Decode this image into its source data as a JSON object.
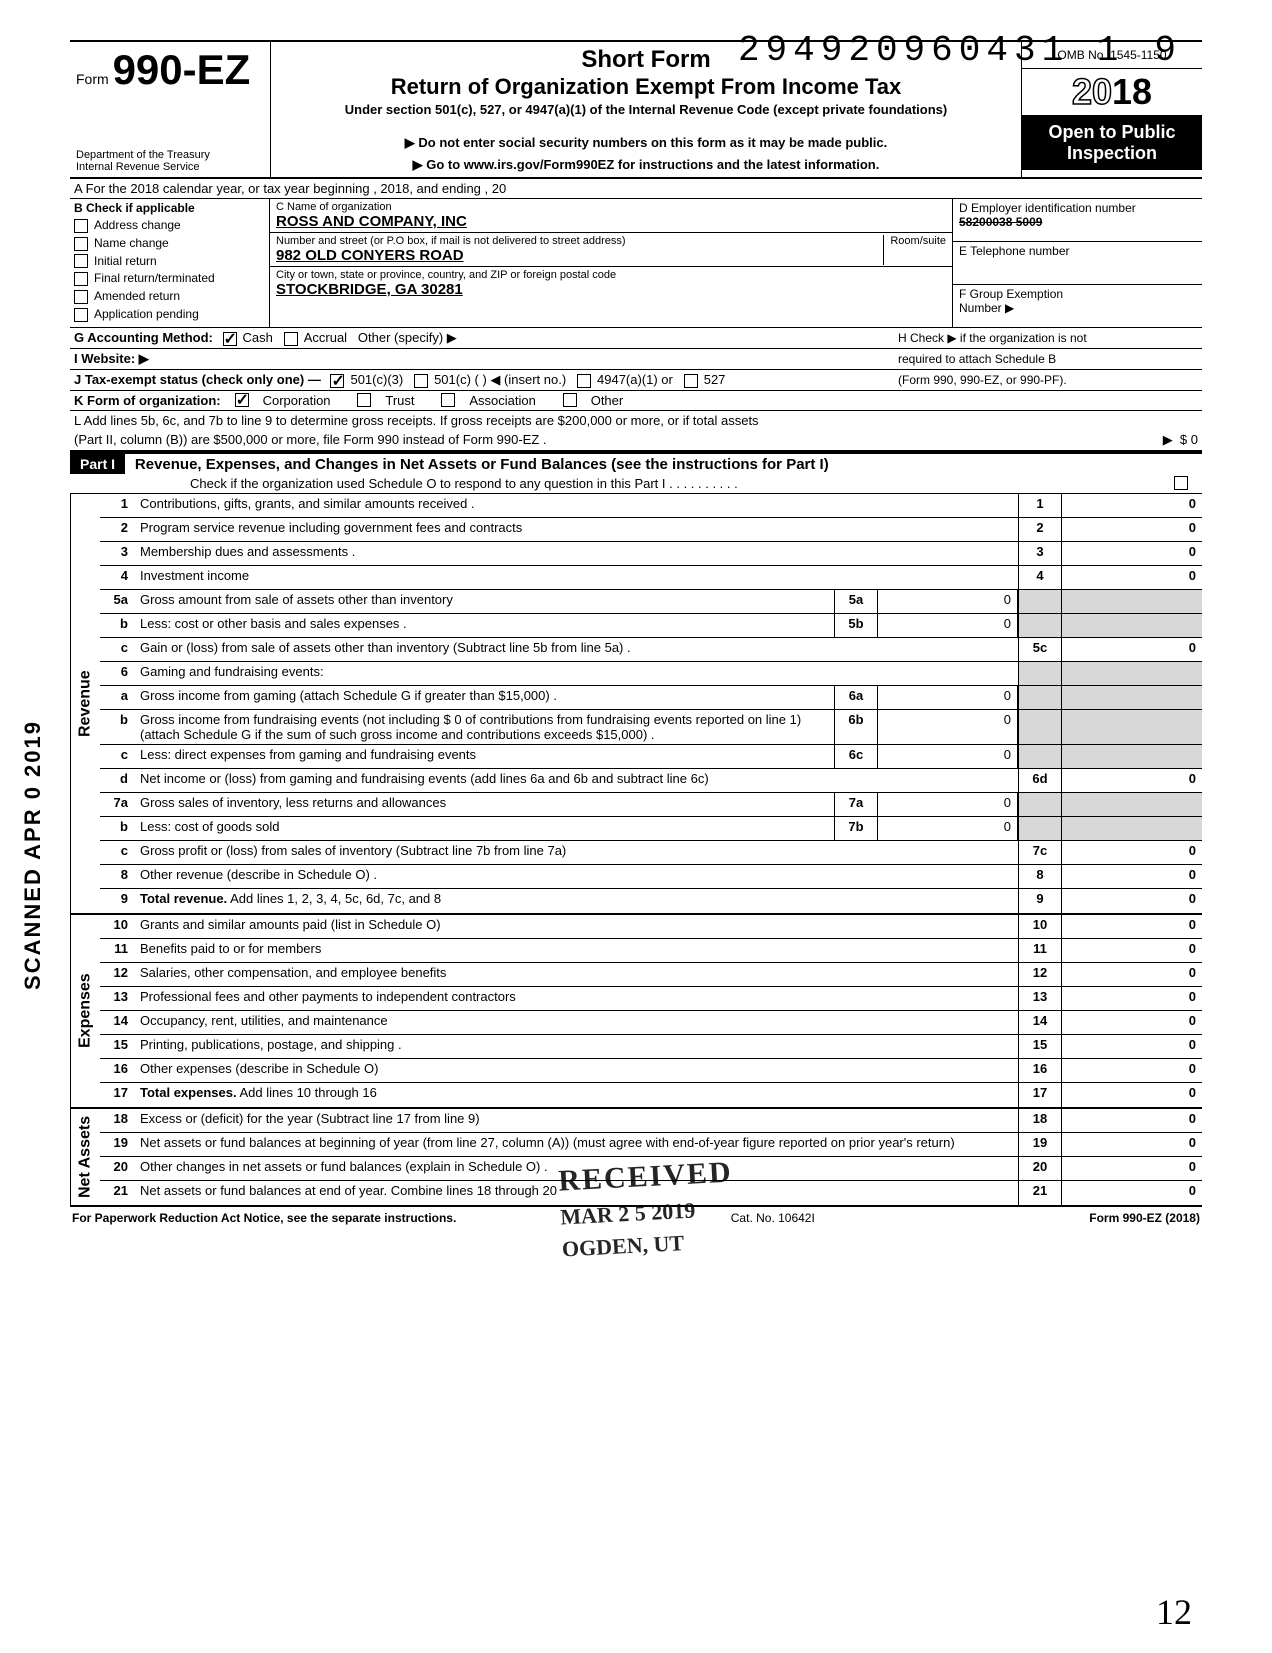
{
  "doc_number": "294920960431 1",
  "doc_number_suffix": "9",
  "form": {
    "prefix": "Form",
    "number": "990-EZ",
    "dept1": "Department of the Treasury",
    "dept2": "Internal Revenue Service",
    "title_short": "Short Form",
    "title_main": "Return of Organization Exempt From Income Tax",
    "subtitle": "Under section 501(c), 527, or 4947(a)(1) of the Internal Revenue Code (except private foundations)",
    "note1": "▶ Do not enter social security numbers on this form as it may be made public.",
    "note2": "▶ Go to www.irs.gov/Form990EZ for instructions and the latest information.",
    "omb": "OMB No. 1545-1150",
    "year_outline": "20",
    "year_solid": "18",
    "open1": "Open to Public",
    "open2": "Inspection"
  },
  "lineA": "A  For the 2018 calendar year, or tax year beginning                                                                          , 2018, and ending                                              , 20",
  "sectionB": {
    "header": "B  Check if applicable",
    "items": [
      "Address change",
      "Name change",
      "Initial return",
      "Final return/terminated",
      "Amended return",
      "Application pending"
    ]
  },
  "sectionC": {
    "name_lbl": "C  Name of organization",
    "name_val": "ROSS AND COMPANY, INC",
    "addr_lbl": "Number and street (or P.O  box, if mail is not delivered to street address)",
    "room_lbl": "Room/suite",
    "addr_val": "982 OLD CONYERS ROAD",
    "city_lbl": "City or town, state or province, country, and ZIP or foreign postal code",
    "city_val": "STOCKBRIDGE, GA 30281"
  },
  "sectionD": {
    "ein_lbl": "D Employer identification number",
    "ein_val": "58200038  5009",
    "tel_lbl": "E  Telephone number",
    "grp_lbl": "F  Group Exemption",
    "grp_lbl2": "Number  ▶"
  },
  "lineG": "G  Accounting Method:",
  "lineG_cash": "Cash",
  "lineG_accrual": "Accrual",
  "lineG_other": "Other (specify) ▶",
  "lineH1": "H  Check ▶        if the organization is not",
  "lineH2": "required to attach Schedule B",
  "lineH3": "(Form 990, 990-EZ, or 990-PF).",
  "lineI": "I   Website: ▶",
  "lineJ": "J  Tax-exempt status (check only one) —",
  "lineJ_a": "501(c)(3)",
  "lineJ_b": "501(c) (          ) ◀ (insert no.)",
  "lineJ_c": "4947(a)(1) or",
  "lineJ_d": "527",
  "lineK": "K  Form of organization:",
  "lineK_a": "Corporation",
  "lineK_b": "Trust",
  "lineK_c": "Association",
  "lineK_d": "Other",
  "lineL1": "L  Add lines 5b, 6c, and 7b to line 9 to determine gross receipts. If gross receipts are $200,000 or more, or if total assets",
  "lineL2": "(Part II, column (B)) are $500,000 or more, file Form 990 instead of Form 990-EZ .",
  "lineL_amt": "$                                      0",
  "part1": {
    "label": "Part I",
    "title": "Revenue, Expenses, and Changes in Net Assets or Fund Balances (see the instructions for Part I)",
    "sub": "Check if the organization used Schedule O to respond to any question in this Part I  . . . . . . . . . ."
  },
  "sections": {
    "revenue": "Revenue",
    "expenses": "Expenses",
    "netassets": "Net Assets"
  },
  "rows": [
    {
      "n": "1",
      "d": "Contributions, gifts, grants, and similar amounts received .",
      "rn": "1",
      "rv": "0"
    },
    {
      "n": "2",
      "d": "Program service revenue including government fees and contracts",
      "rn": "2",
      "rv": "0"
    },
    {
      "n": "3",
      "d": "Membership dues and assessments .",
      "rn": "3",
      "rv": "0"
    },
    {
      "n": "4",
      "d": "Investment income",
      "rn": "4",
      "rv": "0"
    },
    {
      "n": "5a",
      "d": "Gross amount from sale of assets other than inventory",
      "mid": "5a",
      "midval": "0",
      "shade": true
    },
    {
      "n": "b",
      "d": "Less: cost or other basis and sales expenses .",
      "mid": "5b",
      "midval": "0",
      "shade": true
    },
    {
      "n": "c",
      "d": "Gain or (loss) from sale of assets other than inventory (Subtract line 5b from line 5a) .",
      "rn": "5c",
      "rv": "0"
    },
    {
      "n": "6",
      "d": "Gaming and fundraising events:",
      "shade": true
    },
    {
      "n": "a",
      "d": "Gross income from gaming (attach Schedule G if greater than $15,000) .",
      "mid": "6a",
      "midval": "0",
      "shade": true
    },
    {
      "n": "b",
      "d": "Gross income from fundraising events (not including  $                          0 of contributions from fundraising events reported on line 1) (attach Schedule G if the sum of such gross income and contributions exceeds $15,000) .",
      "mid": "6b",
      "midval": "0",
      "shade": true
    },
    {
      "n": "c",
      "d": "Less: direct expenses from gaming and fundraising events",
      "mid": "6c",
      "midval": "0",
      "shade": true
    },
    {
      "n": "d",
      "d": "Net income or (loss) from gaming and fundraising events (add lines 6a and 6b and subtract line 6c)",
      "rn": "6d",
      "rv": "0"
    },
    {
      "n": "7a",
      "d": "Gross sales of inventory, less returns and allowances",
      "mid": "7a",
      "midval": "0",
      "shade": true
    },
    {
      "n": "b",
      "d": "Less: cost of goods sold",
      "mid": "7b",
      "midval": "0",
      "shade": true
    },
    {
      "n": "c",
      "d": "Gross profit or (loss) from sales of inventory (Subtract line 7b from line 7a)",
      "rn": "7c",
      "rv": "0"
    },
    {
      "n": "8",
      "d": "Other revenue (describe in Schedule O) .",
      "rn": "8",
      "rv": "0"
    },
    {
      "n": "9",
      "d": "Total revenue. Add lines 1, 2, 3, 4, 5c, 6d, 7c, and 8",
      "rn": "9",
      "rv": "0",
      "bold": true
    }
  ],
  "exp_rows": [
    {
      "n": "10",
      "d": "Grants and similar amounts paid (list in Schedule O)",
      "rn": "10",
      "rv": "0"
    },
    {
      "n": "11",
      "d": "Benefits paid to or for members",
      "rn": "11",
      "rv": "0"
    },
    {
      "n": "12",
      "d": "Salaries, other compensation, and employee benefits",
      "rn": "12",
      "rv": "0"
    },
    {
      "n": "13",
      "d": "Professional fees and other payments to independent contractors",
      "rn": "13",
      "rv": "0"
    },
    {
      "n": "14",
      "d": "Occupancy, rent, utilities, and maintenance",
      "rn": "14",
      "rv": "0"
    },
    {
      "n": "15",
      "d": "Printing, publications, postage, and shipping .",
      "rn": "15",
      "rv": "0"
    },
    {
      "n": "16",
      "d": "Other expenses (describe in Schedule O)",
      "rn": "16",
      "rv": "0"
    },
    {
      "n": "17",
      "d": "Total expenses. Add lines 10 through 16",
      "rn": "17",
      "rv": "0",
      "bold": true
    }
  ],
  "na_rows": [
    {
      "n": "18",
      "d": "Excess or (deficit) for the year (Subtract line 17 from line 9)",
      "rn": "18",
      "rv": "0"
    },
    {
      "n": "19",
      "d": "Net assets or fund balances at beginning of year (from line 27, column (A)) (must agree with end-of-year figure reported on prior year's return)",
      "rn": "19",
      "rv": "0"
    },
    {
      "n": "20",
      "d": "Other changes in net assets or fund balances (explain in Schedule O) .",
      "rn": "20",
      "rv": "0"
    },
    {
      "n": "21",
      "d": "Net assets or fund balances at end of year. Combine lines 18 through 20",
      "rn": "21",
      "rv": "0"
    }
  ],
  "stamp": {
    "received": "RECEIVED",
    "date": "MAR 2 5 2019",
    "loc": "OGDEN, UT"
  },
  "scanned": "SCANNED APR 0 2019",
  "footer": {
    "left": "For Paperwork Reduction Act Notice, see the separate instructions.",
    "mid": "Cat. No. 10642I",
    "right": "Form 990-EZ (2018)"
  },
  "pagenum": "12"
}
